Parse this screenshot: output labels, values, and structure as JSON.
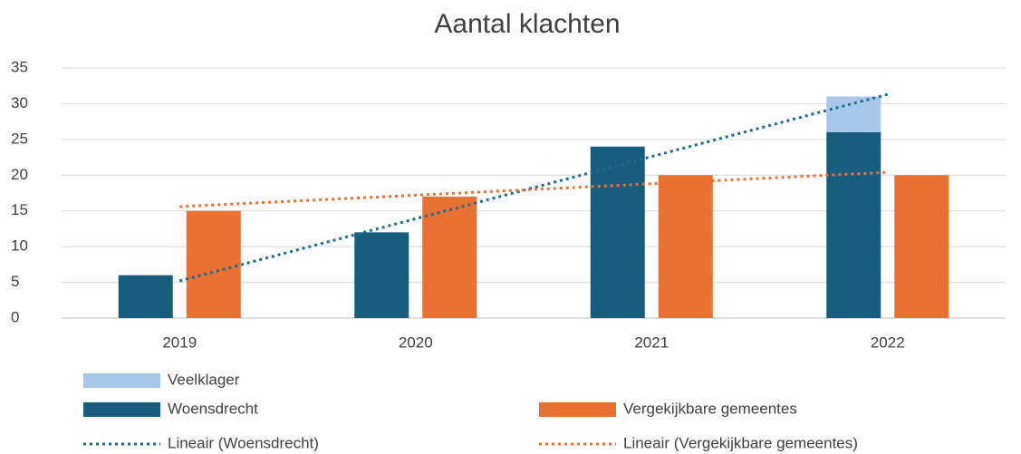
{
  "chart_data": {
    "type": "bar",
    "title": "Aantal klachten",
    "categories": [
      "2019",
      "2020",
      "2021",
      "2022"
    ],
    "series": [
      {
        "name": "Veelklager",
        "color": "#a8c8ea",
        "kind": "bar",
        "stacked_on": "Woensdrecht",
        "values": [
          null,
          null,
          null,
          5
        ]
      },
      {
        "name": "Woensdrecht",
        "color": "#175d7e",
        "kind": "bar",
        "values": [
          6,
          12,
          24,
          26
        ]
      },
      {
        "name": "Vergekijkbare gemeentes",
        "color": "#e97132",
        "kind": "bar",
        "values": [
          15,
          17,
          20,
          20
        ]
      },
      {
        "name": "Lineair (Woensdrecht)",
        "color": "#1c6a8c",
        "kind": "trend",
        "values": [
          5.2,
          13.9,
          22.6,
          31.3
        ]
      },
      {
        "name": "Lineair (Vergekijkbare gemeentes)",
        "color": "#e97132",
        "kind": "trend",
        "values": [
          15.6,
          17.2,
          18.8,
          20.4
        ]
      }
    ],
    "ylim": [
      0,
      35
    ],
    "yticks": [
      0,
      5,
      10,
      15,
      20,
      25,
      30,
      35
    ],
    "grid": true
  }
}
